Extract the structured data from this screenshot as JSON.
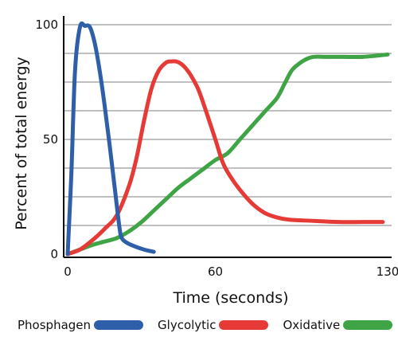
{
  "chart_data": {
    "type": "line",
    "xlabel": "Time (seconds)",
    "ylabel": "Percent of total energy",
    "xlim": [
      0,
      130
    ],
    "ylim": [
      0,
      100
    ],
    "x_ticks": [
      0,
      60,
      130
    ],
    "y_ticks": [
      0,
      50,
      100
    ],
    "grid": "horizontal",
    "legend_position": "bottom",
    "series": [
      {
        "name": "Phosphagen",
        "color": "#2e5fa8",
        "x": [
          0,
          1.5,
          3,
          5,
          7,
          9,
          11,
          13,
          15,
          17,
          19,
          21,
          22,
          24,
          27,
          31,
          35
        ],
        "y": [
          0,
          35,
          80,
          99,
          99.5,
          99,
          92,
          80,
          65,
          48,
          30,
          12,
          7,
          5,
          3.5,
          2,
          1
        ]
      },
      {
        "name": "Glycolytic",
        "color": "#e53a36",
        "x": [
          0,
          5,
          10,
          15,
          20,
          25,
          28,
          31,
          34,
          37,
          40,
          42,
          44,
          46,
          48,
          50,
          53,
          56,
          60,
          63,
          66,
          70,
          75,
          80,
          85,
          90,
          100,
          110,
          120,
          128
        ],
        "y": [
          0,
          2,
          6,
          11,
          17,
          30,
          42,
          58,
          72,
          80,
          83.5,
          84,
          84,
          83,
          81,
          78,
          72,
          63,
          50,
          40,
          34,
          28,
          22,
          18,
          16,
          15,
          14.5,
          14,
          14,
          14
        ]
      },
      {
        "name": "Oxidative",
        "color": "#3fa445",
        "x": [
          0,
          5,
          10,
          15,
          20,
          25,
          30,
          35,
          40,
          45,
          50,
          55,
          60,
          65,
          70,
          75,
          80,
          85,
          88,
          91,
          94,
          97,
          100,
          105,
          110,
          120,
          130
        ],
        "y": [
          0,
          2,
          4,
          5.5,
          7,
          10,
          14,
          19,
          24,
          29,
          33,
          37,
          41,
          44,
          50,
          56,
          62,
          68,
          74,
          80,
          83,
          85,
          86,
          86,
          86,
          86,
          87
        ]
      }
    ]
  }
}
